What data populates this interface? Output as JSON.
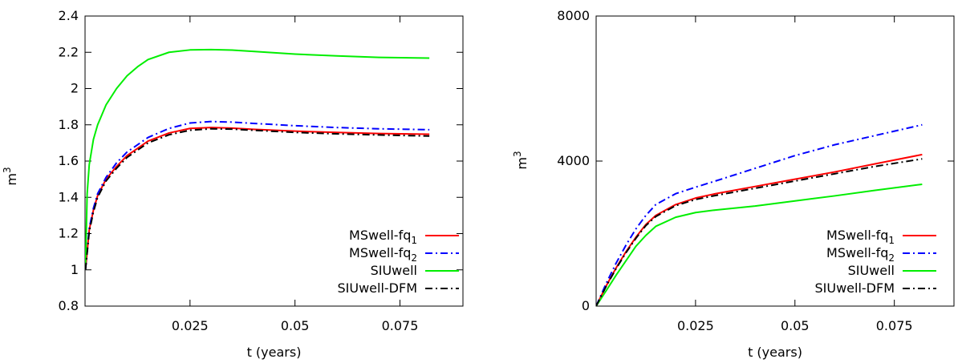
{
  "chart_data": [
    {
      "type": "line",
      "xlabel": "t (years)",
      "ylabel": "m",
      "ylabel_sup": "3",
      "xlim": [
        0,
        0.09
      ],
      "ylim": [
        0.8,
        2.4
      ],
      "xticks": [
        {
          "v": 0.025,
          "label": "0.025"
        },
        {
          "v": 0.05,
          "label": "0.05"
        },
        {
          "v": 0.075,
          "label": "0.075"
        }
      ],
      "yticks": [
        {
          "v": 0.8,
          "label": "0.8"
        },
        {
          "v": 1.0,
          "label": "1"
        },
        {
          "v": 1.2,
          "label": "1.2"
        },
        {
          "v": 1.4,
          "label": "1.4"
        },
        {
          "v": 1.6,
          "label": "1.6"
        },
        {
          "v": 1.8,
          "label": "1.8"
        },
        {
          "v": 2.0,
          "label": "2"
        },
        {
          "v": 2.2,
          "label": "2.2"
        },
        {
          "v": 2.4,
          "label": "2.4"
        }
      ],
      "grid": false,
      "legend_position": "bottom-right",
      "series": [
        {
          "name": "MSwell-fq",
          "sub": "1",
          "color": "#ff0000",
          "dash": "solid",
          "x": [
            0.0001,
            0.001,
            0.002,
            0.003,
            0.005,
            0.0075,
            0.01,
            0.0125,
            0.015,
            0.02,
            0.025,
            0.03,
            0.035,
            0.04,
            0.05,
            0.06,
            0.07,
            0.082
          ],
          "y": [
            1.0,
            1.22,
            1.33,
            1.41,
            1.5,
            1.57,
            1.63,
            1.67,
            1.71,
            1.755,
            1.78,
            1.785,
            1.782,
            1.775,
            1.765,
            1.758,
            1.752,
            1.748
          ]
        },
        {
          "name": "MSwell-fq",
          "sub": "2",
          "color": "#0000ff",
          "dash": "dashdot",
          "x": [
            0.0001,
            0.001,
            0.002,
            0.003,
            0.005,
            0.0075,
            0.01,
            0.0125,
            0.015,
            0.02,
            0.025,
            0.03,
            0.035,
            0.04,
            0.05,
            0.06,
            0.07,
            0.082
          ],
          "y": [
            1.0,
            1.23,
            1.34,
            1.42,
            1.51,
            1.59,
            1.65,
            1.69,
            1.73,
            1.78,
            1.81,
            1.818,
            1.815,
            1.808,
            1.795,
            1.785,
            1.778,
            1.773
          ]
        },
        {
          "name": "SIUwell",
          "sub": "",
          "color": "#00ee00",
          "dash": "solid",
          "x": [
            0.0001,
            0.0005,
            0.001,
            0.002,
            0.003,
            0.005,
            0.0075,
            0.01,
            0.0125,
            0.015,
            0.02,
            0.025,
            0.03,
            0.035,
            0.04,
            0.05,
            0.06,
            0.07,
            0.082
          ],
          "y": [
            1.0,
            1.42,
            1.58,
            1.72,
            1.8,
            1.91,
            2.0,
            2.07,
            2.12,
            2.16,
            2.2,
            2.213,
            2.215,
            2.212,
            2.205,
            2.19,
            2.18,
            2.172,
            2.168
          ]
        },
        {
          "name": "SIUwell-DFM",
          "sub": "",
          "color": "#000000",
          "dash": "dashdot",
          "x": [
            0.0001,
            0.001,
            0.002,
            0.003,
            0.005,
            0.0075,
            0.01,
            0.0125,
            0.015,
            0.02,
            0.025,
            0.03,
            0.035,
            0.04,
            0.05,
            0.06,
            0.07,
            0.082
          ],
          "y": [
            1.0,
            1.21,
            1.32,
            1.4,
            1.49,
            1.56,
            1.62,
            1.66,
            1.7,
            1.745,
            1.77,
            1.778,
            1.776,
            1.77,
            1.758,
            1.75,
            1.744,
            1.738
          ]
        }
      ]
    },
    {
      "type": "line",
      "xlabel": "t (years)",
      "ylabel": "m",
      "ylabel_sup": "3",
      "xlim": [
        0,
        0.09
      ],
      "ylim": [
        0,
        8000
      ],
      "xticks": [
        {
          "v": 0.025,
          "label": "0.025"
        },
        {
          "v": 0.05,
          "label": "0.05"
        },
        {
          "v": 0.075,
          "label": "0.075"
        }
      ],
      "yticks": [
        {
          "v": 0,
          "label": "0"
        },
        {
          "v": 4000,
          "label": "4000"
        },
        {
          "v": 8000,
          "label": "8000"
        }
      ],
      "grid": false,
      "legend_position": "bottom-right",
      "series": [
        {
          "name": "MSwell-fq",
          "sub": "1",
          "color": "#ff0000",
          "dash": "solid",
          "x": [
            0,
            0.0025,
            0.005,
            0.0075,
            0.01,
            0.0125,
            0.015,
            0.02,
            0.025,
            0.03,
            0.04,
            0.05,
            0.06,
            0.07,
            0.082
          ],
          "y": [
            0,
            550,
            1050,
            1500,
            1900,
            2250,
            2500,
            2800,
            2980,
            3100,
            3300,
            3500,
            3700,
            3920,
            4180
          ]
        },
        {
          "name": "MSwell-fq",
          "sub": "2",
          "color": "#0000ff",
          "dash": "dashdot",
          "x": [
            0,
            0.0025,
            0.005,
            0.0075,
            0.01,
            0.0125,
            0.015,
            0.02,
            0.025,
            0.03,
            0.04,
            0.05,
            0.06,
            0.07,
            0.082
          ],
          "y": [
            0,
            620,
            1180,
            1680,
            2130,
            2500,
            2800,
            3100,
            3280,
            3450,
            3800,
            4150,
            4450,
            4700,
            5000
          ]
        },
        {
          "name": "SIUwell",
          "sub": "",
          "color": "#00ee00",
          "dash": "solid",
          "x": [
            0,
            0.0025,
            0.005,
            0.0075,
            0.01,
            0.0125,
            0.015,
            0.02,
            0.025,
            0.03,
            0.04,
            0.05,
            0.06,
            0.07,
            0.082
          ],
          "y": [
            0,
            420,
            850,
            1250,
            1650,
            1950,
            2200,
            2450,
            2580,
            2650,
            2760,
            2900,
            3040,
            3190,
            3360
          ]
        },
        {
          "name": "SIUwell-DFM",
          "sub": "",
          "color": "#000000",
          "dash": "dashdot",
          "x": [
            0,
            0.0025,
            0.005,
            0.0075,
            0.01,
            0.0125,
            0.015,
            0.02,
            0.025,
            0.03,
            0.04,
            0.05,
            0.06,
            0.07,
            0.082
          ],
          "y": [
            0,
            540,
            1030,
            1470,
            1870,
            2220,
            2470,
            2770,
            2940,
            3050,
            3250,
            3450,
            3650,
            3850,
            4060
          ]
        }
      ]
    }
  ]
}
